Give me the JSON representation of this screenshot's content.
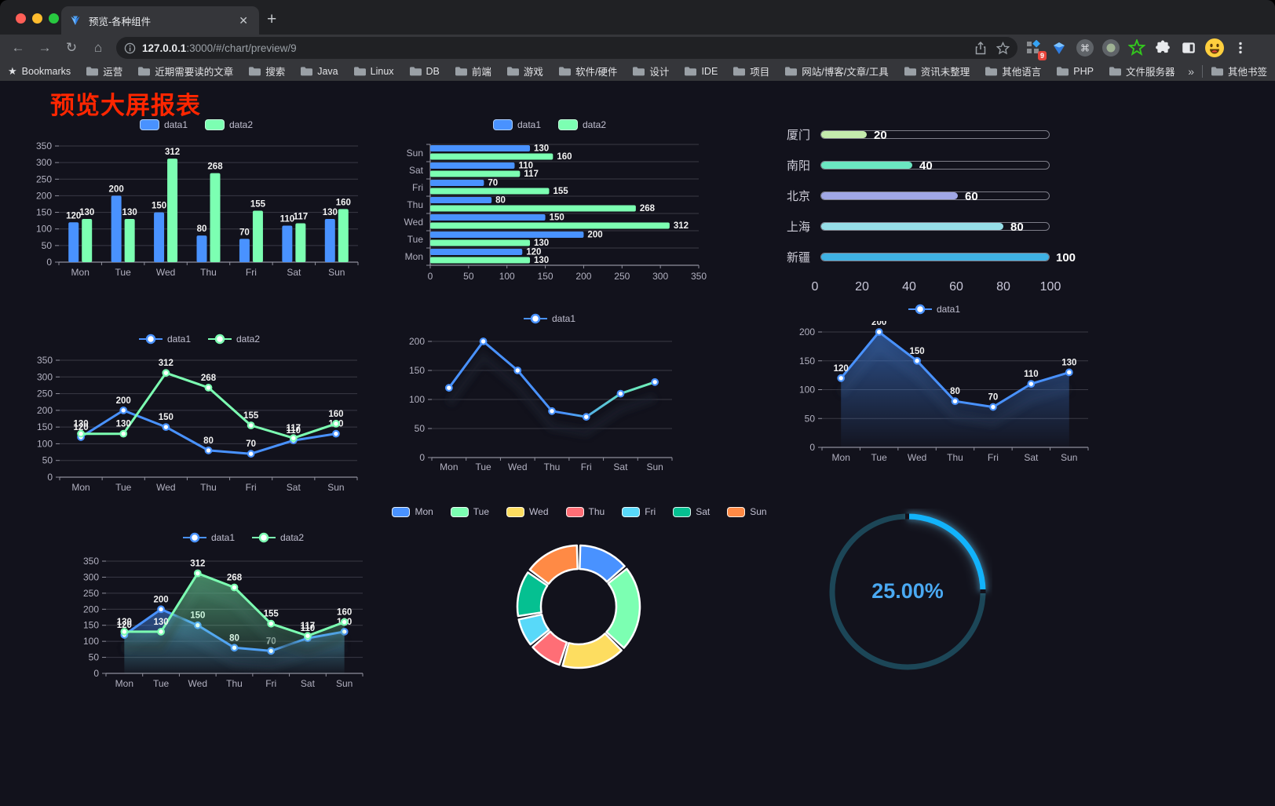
{
  "browser": {
    "tab": {
      "title": "预览-各种组件"
    },
    "url": {
      "host": "127.0.0.1",
      "rest": ":3000/#/chart/preview/9"
    },
    "extensions_badge": "9",
    "bookmarks": {
      "lead": "Bookmarks",
      "folders": [
        "运营",
        "近期需要读的文章",
        "搜索",
        "Java",
        "Linux",
        "DB",
        "前端",
        "游戏",
        "软件/硬件",
        "设计",
        "IDE",
        "项目",
        "网站/博客/文章/工具",
        "资讯未整理",
        "其他语言",
        "PHP",
        "文件服务器"
      ],
      "chevron": "»",
      "other": "其他书签"
    }
  },
  "page": {
    "title": "预览大屏报表"
  },
  "colors": {
    "blue": "#4992ff",
    "green": "#7cffb2",
    "axis_text": "#b2b1c0",
    "grid": "#3a3a45",
    "title_red": "#ff2600",
    "value_label": "#f2f2f2"
  },
  "chart_data": [
    {
      "id": "bar-grouped",
      "type": "bar",
      "categories": [
        "Mon",
        "Tue",
        "Wed",
        "Thu",
        "Fri",
        "Sat",
        "Sun"
      ],
      "series": [
        {
          "name": "data1",
          "color": "#4992ff",
          "values": [
            120,
            200,
            150,
            80,
            70,
            110,
            130
          ]
        },
        {
          "name": "data2",
          "color": "#7cffb2",
          "values": [
            130,
            130,
            312,
            268,
            155,
            117,
            160
          ]
        }
      ],
      "ylim": [
        0,
        350
      ],
      "yticks": [
        0,
        50,
        100,
        150,
        200,
        250,
        300,
        350
      ],
      "value_labels": true,
      "legend_position": "top",
      "grid": true
    },
    {
      "id": "bar-horizontal",
      "type": "bar-horizontal",
      "categories": [
        "Mon",
        "Tue",
        "Wed",
        "Thu",
        "Fri",
        "Sat",
        "Sun"
      ],
      "display_order_top_to_bottom": [
        "Sun",
        "Sat",
        "Fri",
        "Thu",
        "Wed",
        "Tue",
        "Mon"
      ],
      "series": [
        {
          "name": "data1",
          "color": "#4992ff",
          "values": [
            120,
            200,
            150,
            80,
            70,
            110,
            130
          ]
        },
        {
          "name": "data2",
          "color": "#7cffb2",
          "values": [
            130,
            130,
            312,
            268,
            155,
            117,
            160
          ]
        }
      ],
      "xlim": [
        0,
        350
      ],
      "xticks": [
        0,
        50,
        100,
        150,
        200,
        250,
        300,
        350
      ],
      "value_labels": true,
      "legend_position": "top",
      "grid": true
    },
    {
      "id": "progress",
      "type": "progress-list",
      "max": 100,
      "axis_ticks": [
        0,
        20,
        40,
        60,
        80,
        100
      ],
      "rows": [
        {
          "label": "厦门",
          "value": 20,
          "color": "#c4ebad"
        },
        {
          "label": "南阳",
          "value": 40,
          "color": "#6be6c1"
        },
        {
          "label": "北京",
          "value": 60,
          "color": "#a0a7e6"
        },
        {
          "label": "上海",
          "value": 80,
          "color": "#96dee8"
        },
        {
          "label": "新疆",
          "value": 100,
          "color": "#3fb1e3"
        }
      ]
    },
    {
      "id": "line-double",
      "type": "line",
      "categories": [
        "Mon",
        "Tue",
        "Wed",
        "Thu",
        "Fri",
        "Sat",
        "Sun"
      ],
      "series": [
        {
          "name": "data1",
          "color": "#4992ff",
          "values": [
            120,
            200,
            150,
            80,
            70,
            110,
            130
          ]
        },
        {
          "name": "data2",
          "color": "#7cffb2",
          "values": [
            130,
            130,
            312,
            268,
            155,
            117,
            160
          ]
        }
      ],
      "ylim": [
        0,
        350
      ],
      "yticks": [
        0,
        50,
        100,
        150,
        200,
        250,
        300,
        350
      ],
      "value_labels": true,
      "legend_position": "top",
      "grid": true
    },
    {
      "id": "line-gradient",
      "type": "line",
      "categories": [
        "Mon",
        "Tue",
        "Wed",
        "Thu",
        "Fri",
        "Sat",
        "Sun"
      ],
      "series": [
        {
          "name": "data1",
          "color": "#4992ff",
          "color_end": "#7cffb2",
          "values": [
            120,
            200,
            150,
            80,
            70,
            110,
            130
          ]
        }
      ],
      "ylim": [
        0,
        200
      ],
      "yticks": [
        0,
        50,
        100,
        150,
        200
      ],
      "value_labels": false,
      "shadow": true,
      "legend_position": "top",
      "grid": true
    },
    {
      "id": "area-single",
      "type": "area",
      "categories": [
        "Mon",
        "Tue",
        "Wed",
        "Thu",
        "Fri",
        "Sat",
        "Sun"
      ],
      "series": [
        {
          "name": "data1",
          "color": "#4992ff",
          "values": [
            120,
            200,
            150,
            80,
            70,
            110,
            130
          ],
          "area": true
        }
      ],
      "ylim": [
        0,
        200
      ],
      "yticks": [
        0,
        50,
        100,
        150,
        200
      ],
      "value_labels": true,
      "shadow": true,
      "legend_position": "top",
      "grid": true
    },
    {
      "id": "area-double",
      "type": "area",
      "categories": [
        "Mon",
        "Tue",
        "Wed",
        "Thu",
        "Fri",
        "Sat",
        "Sun"
      ],
      "series": [
        {
          "name": "data1",
          "color": "#4992ff",
          "values": [
            120,
            200,
            150,
            80,
            70,
            110,
            130
          ],
          "area": true
        },
        {
          "name": "data2",
          "color": "#7cffb2",
          "values": [
            130,
            130,
            312,
            268,
            155,
            117,
            160
          ],
          "area": true
        }
      ],
      "ylim": [
        0,
        350
      ],
      "yticks": [
        0,
        50,
        100,
        150,
        200,
        250,
        300,
        350
      ],
      "value_labels": true,
      "shadow": true,
      "legend_position": "top",
      "grid": true
    },
    {
      "id": "donut",
      "type": "pie",
      "donut": true,
      "categories": [
        "Mon",
        "Tue",
        "Wed",
        "Thu",
        "Fri",
        "Sat",
        "Sun"
      ],
      "values": [
        120,
        200,
        150,
        80,
        70,
        110,
        130
      ],
      "colors": [
        "#4992ff",
        "#7cffb2",
        "#fddd60",
        "#ff6e76",
        "#58d9f9",
        "#05c091",
        "#ff8a45"
      ],
      "legend_position": "top"
    },
    {
      "id": "gauge",
      "type": "gauge",
      "value": 25,
      "max": 100,
      "label": "25.00%",
      "progress_color": "#12b3fb",
      "track_color": "#1c4657",
      "text_color": "#4aa9f2"
    }
  ]
}
